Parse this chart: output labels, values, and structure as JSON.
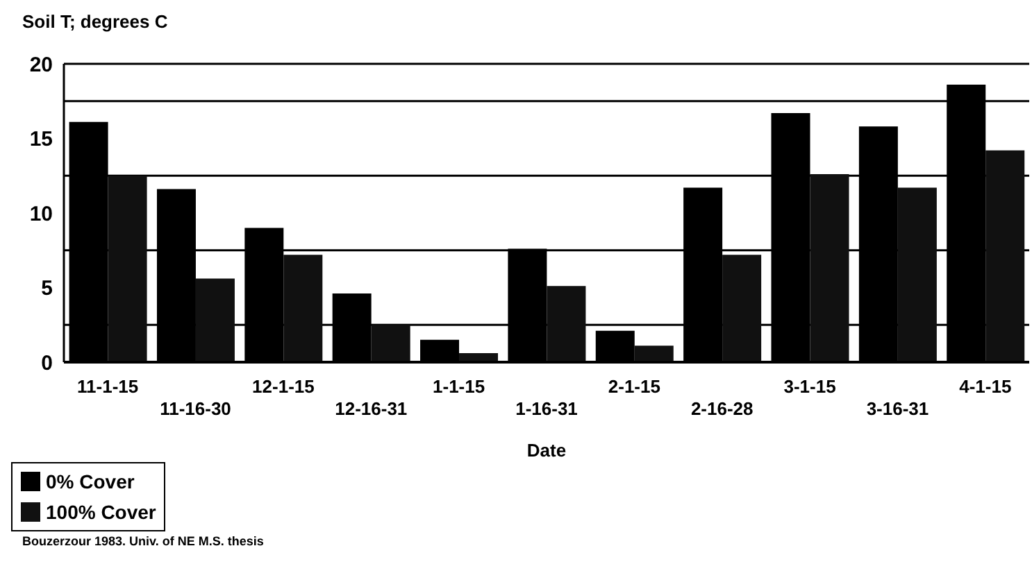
{
  "chart_data": {
    "type": "bar",
    "ylabel": "Soil T; degrees  C",
    "xlabel": "Date",
    "categories": [
      "11-1-15",
      "11-16-30",
      "12-1-15",
      "12-16-31",
      "1-1-15",
      "1-16-31",
      "2-1-15",
      "2-16-28",
      "3-1-15",
      "3-16-31",
      "4-1-15"
    ],
    "series": [
      {
        "name": "0% Cover",
        "color": "#000000",
        "values": [
          16.1,
          11.6,
          9.0,
          4.6,
          1.5,
          7.6,
          2.1,
          11.7,
          16.7,
          15.8,
          18.6
        ]
      },
      {
        "name": "100% Cover",
        "color": "#111111",
        "values": [
          12.5,
          5.6,
          7.2,
          2.5,
          0.6,
          5.1,
          1.1,
          7.2,
          12.6,
          11.7,
          14.2
        ]
      }
    ],
    "ylim": [
      0,
      20
    ],
    "yticks": [
      0,
      {
        "value": 2.5,
        "label": null
      },
      5,
      {
        "value": 7.5,
        "label": null
      },
      10,
      {
        "value": 12.5,
        "label": null
      },
      15,
      {
        "value": 17.5,
        "label": null
      },
      20
    ],
    "grid": "y",
    "legend": "bottom",
    "annotations": [
      "Bouzerzour 1983.  Univ. of NE M.S. thesis"
    ]
  }
}
